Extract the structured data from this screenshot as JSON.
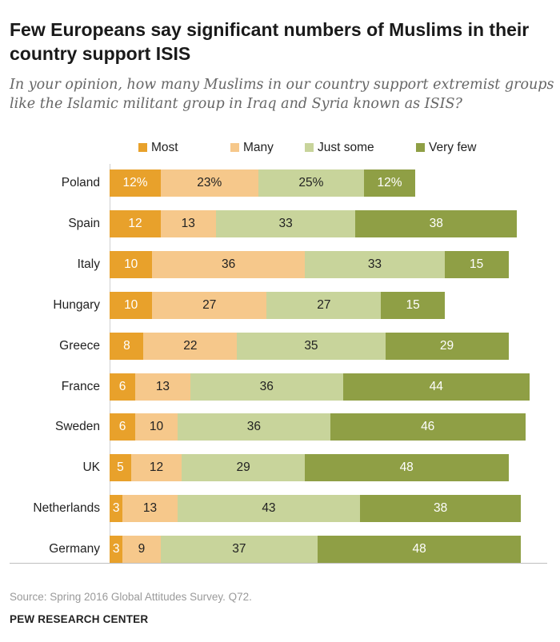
{
  "title": "Few Europeans say significant numbers of Muslims in their country support ISIS",
  "subtitle": "In your opinion, how many Muslims in our country support extremist groups like the Islamic militant group in Iraq and Syria known as ISIS?",
  "source": "Source: Spring 2016 Global Attitudes Survey. Q72.",
  "organization": "PEW RESEARCH CENTER",
  "chart_data": {
    "type": "bar",
    "orientation": "horizontal",
    "stacked": true,
    "title": "Few Europeans say significant numbers of Muslims in their country support ISIS",
    "xlabel": "",
    "ylabel": "",
    "units": "percent",
    "xlim": [
      0,
      100
    ],
    "legend_position": "top",
    "categories": [
      "Poland",
      "Spain",
      "Italy",
      "Hungary",
      "Greece",
      "France",
      "Sweden",
      "UK",
      "Netherlands",
      "Germany"
    ],
    "series": [
      {
        "name": "Most",
        "color": "#e8a12b",
        "text_color": "#ffffff",
        "values": [
          12,
          12,
          10,
          10,
          8,
          6,
          6,
          5,
          3,
          3
        ],
        "labels": [
          "12%",
          "12",
          "10",
          "10",
          "8",
          "6",
          "6",
          "5",
          "3",
          "3"
        ]
      },
      {
        "name": "Many",
        "color": "#f6c88b",
        "text_color": "#222222",
        "values": [
          23,
          13,
          36,
          27,
          22,
          13,
          10,
          12,
          13,
          9
        ],
        "labels": [
          "23%",
          "13",
          "36",
          "27",
          "22",
          "13",
          "10",
          "12",
          "13",
          "9"
        ]
      },
      {
        "name": "Just some",
        "color": "#c8d49b",
        "text_color": "#222222",
        "values": [
          25,
          33,
          33,
          27,
          35,
          36,
          36,
          29,
          43,
          37
        ],
        "labels": [
          "25%",
          "33",
          "33",
          "27",
          "35",
          "36",
          "36",
          "29",
          "43",
          "37"
        ]
      },
      {
        "name": "Very few",
        "color": "#8f9f45",
        "text_color": "#ffffff",
        "values": [
          12,
          38,
          15,
          15,
          29,
          44,
          46,
          48,
          38,
          48
        ],
        "labels": [
          "12%",
          "38",
          "15",
          "15",
          "29",
          "44",
          "46",
          "48",
          "38",
          "48"
        ]
      }
    ]
  }
}
